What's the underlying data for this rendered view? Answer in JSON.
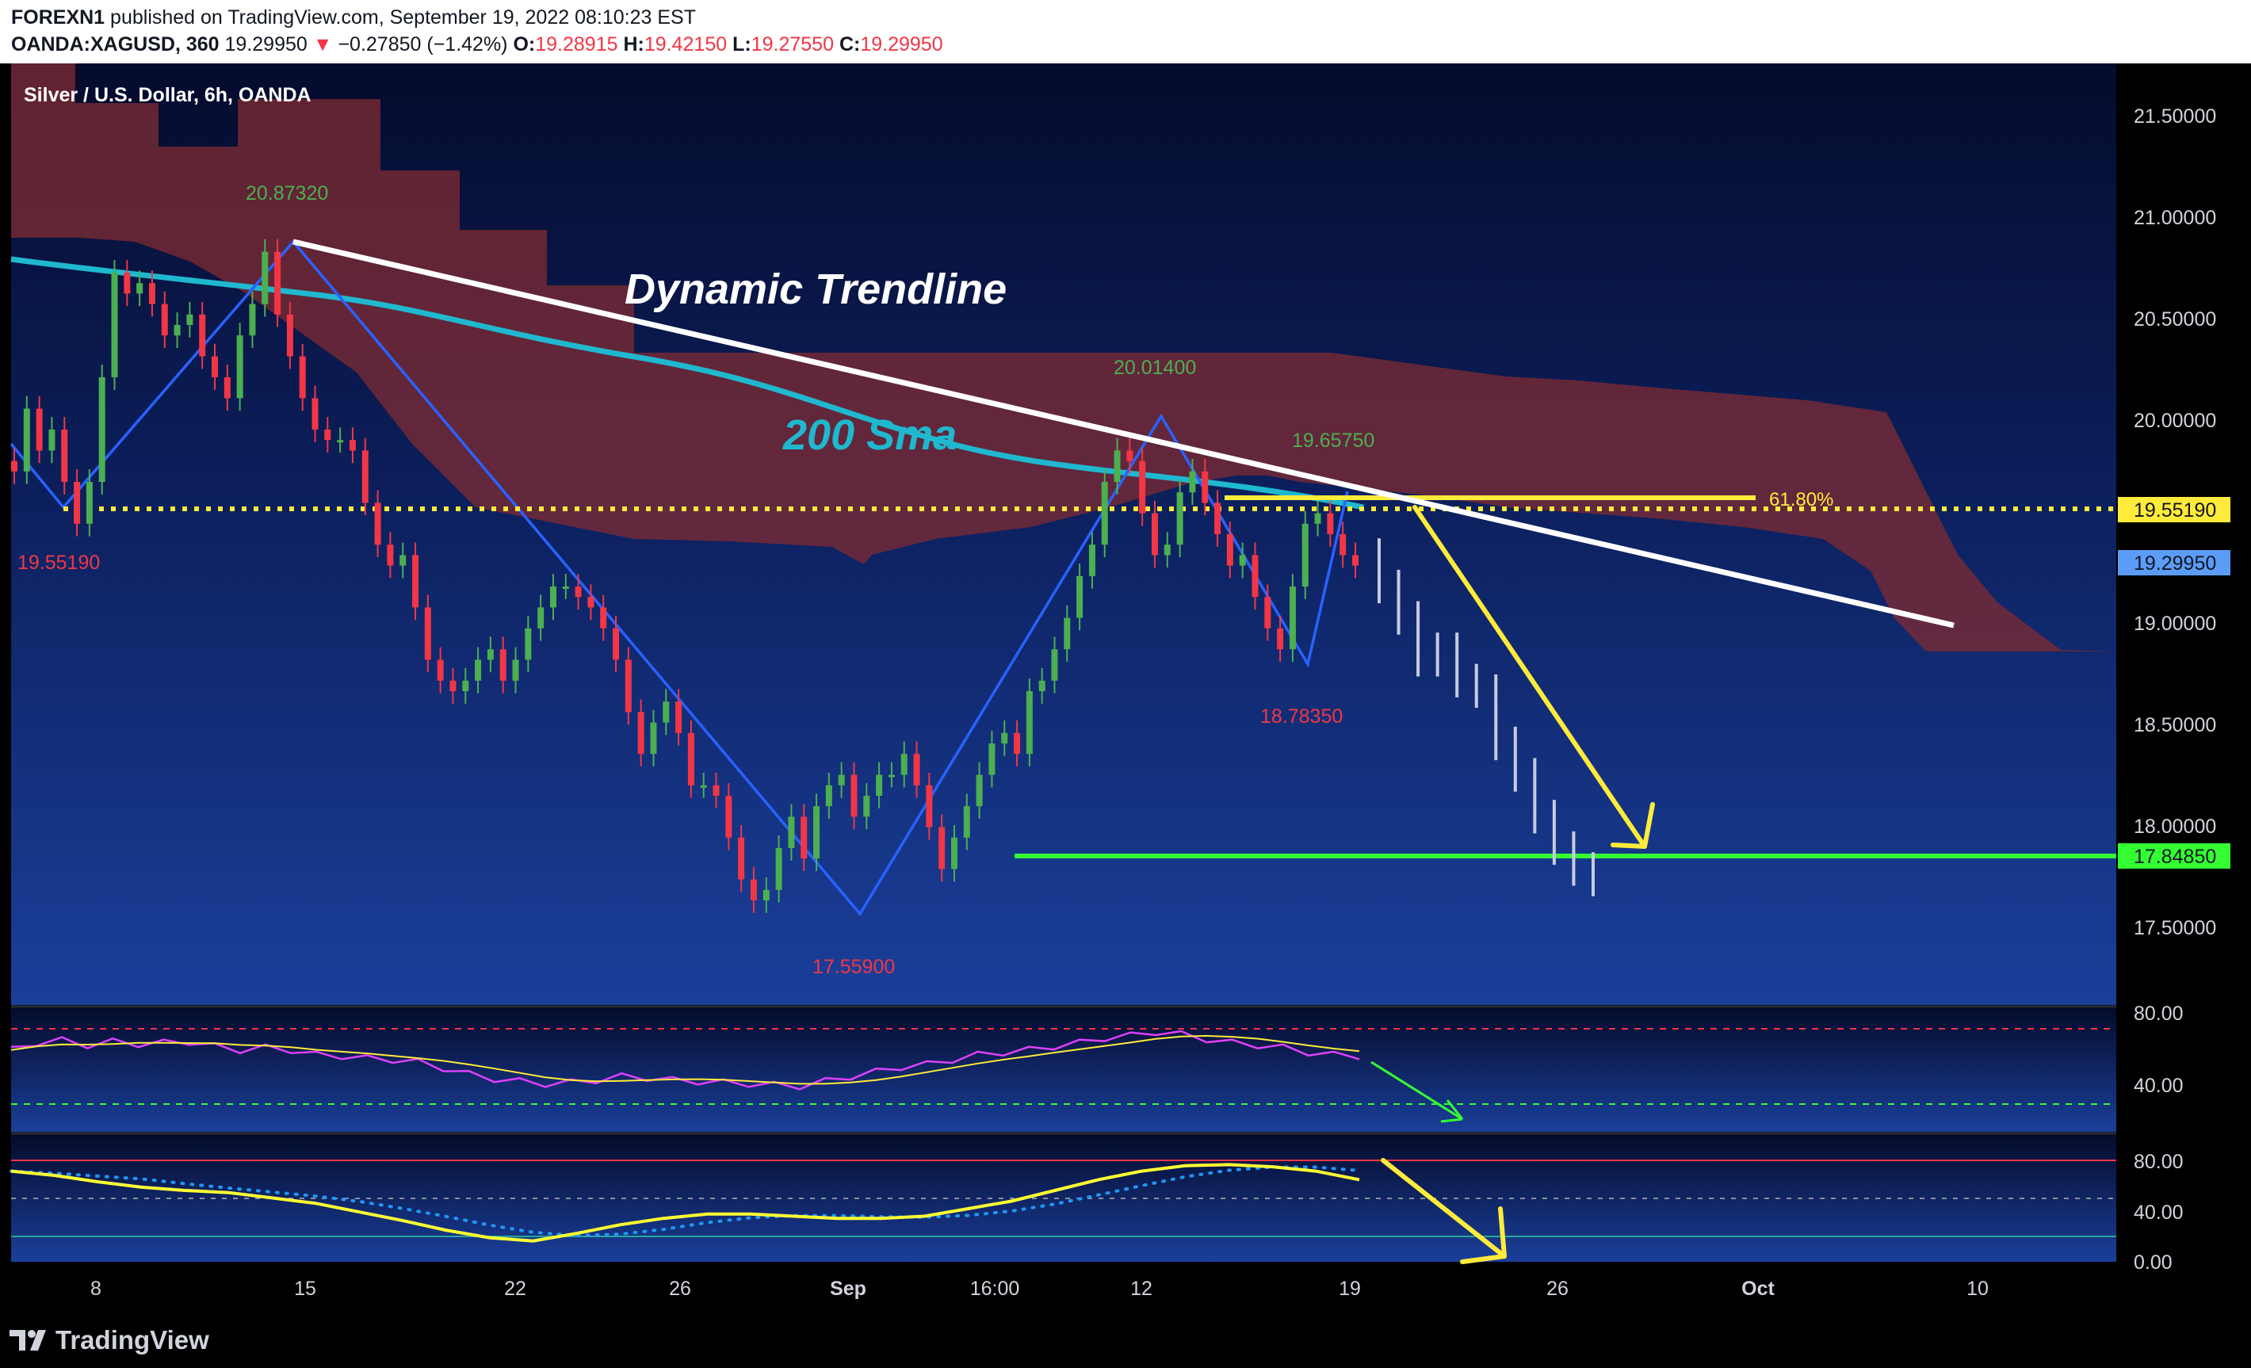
{
  "header": {
    "publisher": "FOREXN1",
    "published_text": "published on TradingView.com, September 19, 2022 08:10:23 EST",
    "symbol": "OANDA:XAGUSD, 360",
    "last": "19.29950",
    "change": "−0.27850 (−1.42%)",
    "open_label": "O:",
    "open": "19.28915",
    "high_label": "H:",
    "high": "19.42150",
    "low_label": "L:",
    "low": "19.27550",
    "close_label": "C:",
    "close": "19.29950"
  },
  "chart_title": "Silver / U.S. Dollar, 6h, OANDA",
  "annotations": {
    "dynamic_trendline": "Dynamic Trendline",
    "sma200": "200 Sma",
    "fib": "61.80%",
    "high1": "20.87320",
    "high2": "20.01400",
    "high3": "19.65750",
    "low1": "17.55900",
    "low2": "18.78350",
    "left_level": "19.55190"
  },
  "price_tags": {
    "resistance": "19.55190",
    "current": "19.29950",
    "support": "17.84850"
  },
  "footer": {
    "brand": "TradingView"
  },
  "colors": {
    "bull": "#4caf50",
    "bear": "#f23645",
    "sma": "#1fb8cf",
    "trend": "#ffffff",
    "fib": "#ffeb3b",
    "support": "#33ff33",
    "zigzag": "#2962ff",
    "cloud": "#7b2a33"
  },
  "chart_data": {
    "type": "candlestick",
    "symbol": "XAGUSD",
    "timeframe": "6h",
    "y_axis": {
      "labels": [
        "21.50000",
        "21.00000",
        "20.50000",
        "20.00000",
        "19.00000",
        "18.50000",
        "18.00000",
        "17.50000"
      ],
      "range": [
        17.2,
        21.7
      ]
    },
    "x_axis": {
      "labels": [
        "8",
        "15",
        "22",
        "26",
        "Sep",
        "16:00",
        "12",
        "19",
        "26",
        "Oct",
        "10"
      ]
    },
    "close_path": [
      19.75,
      20.05,
      19.85,
      19.95,
      19.7,
      19.5,
      19.7,
      20.2,
      20.7,
      20.6,
      20.65,
      20.55,
      20.4,
      20.45,
      20.5,
      20.3,
      20.2,
      20.1,
      20.4,
      20.55,
      20.8,
      20.5,
      20.3,
      20.1,
      19.95,
      19.9,
      19.9,
      19.85,
      19.6,
      19.4,
      19.3,
      19.35,
      19.1,
      18.85,
      18.75,
      18.7,
      18.75,
      18.85,
      18.9,
      18.75,
      18.85,
      19.0,
      19.1,
      19.2,
      19.2,
      19.15,
      19.1,
      19.0,
      18.85,
      18.6,
      18.4,
      18.55,
      18.65,
      18.5,
      18.25,
      18.25,
      18.2,
      18.0,
      17.8,
      17.7,
      17.75,
      17.95,
      18.1,
      17.9,
      18.15,
      18.25,
      18.3,
      18.1,
      18.2,
      18.3,
      18.3,
      18.4,
      18.25,
      18.05,
      17.85,
      18.0,
      18.15,
      18.3,
      18.45,
      18.5,
      18.4,
      18.7,
      18.75,
      18.9,
      19.05,
      19.25,
      19.4,
      19.7,
      19.85,
      19.8,
      19.55,
      19.35,
      19.4,
      19.65,
      19.75,
      19.6,
      19.45,
      19.3,
      19.35,
      19.15,
      19.0,
      18.9,
      19.2,
      19.5,
      19.55,
      19.45,
      19.35,
      19.3
    ],
    "projection": [
      19.2,
      19.05,
      18.85,
      18.9,
      18.75,
      18.7,
      18.45,
      18.3,
      18.1,
      17.95,
      17.85,
      17.8
    ],
    "sma200": {
      "label": "200 Sma",
      "values": [
        20.85,
        20.8,
        20.72,
        20.65,
        20.55,
        20.4,
        20.28,
        20.15,
        20.05,
        19.95,
        19.85,
        19.72,
        19.62,
        19.6
      ]
    },
    "levels": {
      "resistance": 19.5519,
      "support": 17.8485,
      "fib_618": 19.63
    },
    "pivots": [
      {
        "label": "20.87320",
        "value": 20.8732
      },
      {
        "label": "17.55900",
        "value": 17.559
      },
      {
        "label": "20.01400",
        "value": 20.014
      },
      {
        "label": "18.78350",
        "value": 18.7835
      },
      {
        "label": "19.65750",
        "value": 19.6575
      }
    ],
    "rsi": {
      "levels": [
        "80.00",
        "40.00"
      ],
      "values": [
        60,
        66,
        68,
        64,
        67,
        65,
        66,
        67,
        63,
        60,
        62,
        60,
        56,
        55,
        53,
        52,
        50,
        45,
        40,
        36,
        34,
        32,
        33,
        35,
        38,
        37,
        35,
        34,
        33,
        32,
        31,
        30,
        34,
        38,
        42,
        46,
        48,
        52,
        56,
        58,
        60,
        63,
        66,
        70,
        72,
        75,
        73,
        69,
        66,
        64,
        62,
        58,
        56,
        55
      ]
    },
    "oscillator": {
      "levels": [
        "80.00",
        "40.00",
        "0.00"
      ],
      "values": [
        80,
        76,
        70,
        65,
        62,
        60,
        55,
        50,
        42,
        34,
        25,
        18,
        15,
        22,
        30,
        36,
        40,
        40,
        38,
        36,
        36,
        38,
        45,
        52,
        62,
        72,
        80,
        85,
        86,
        84,
        80,
        72
      ]
    }
  }
}
